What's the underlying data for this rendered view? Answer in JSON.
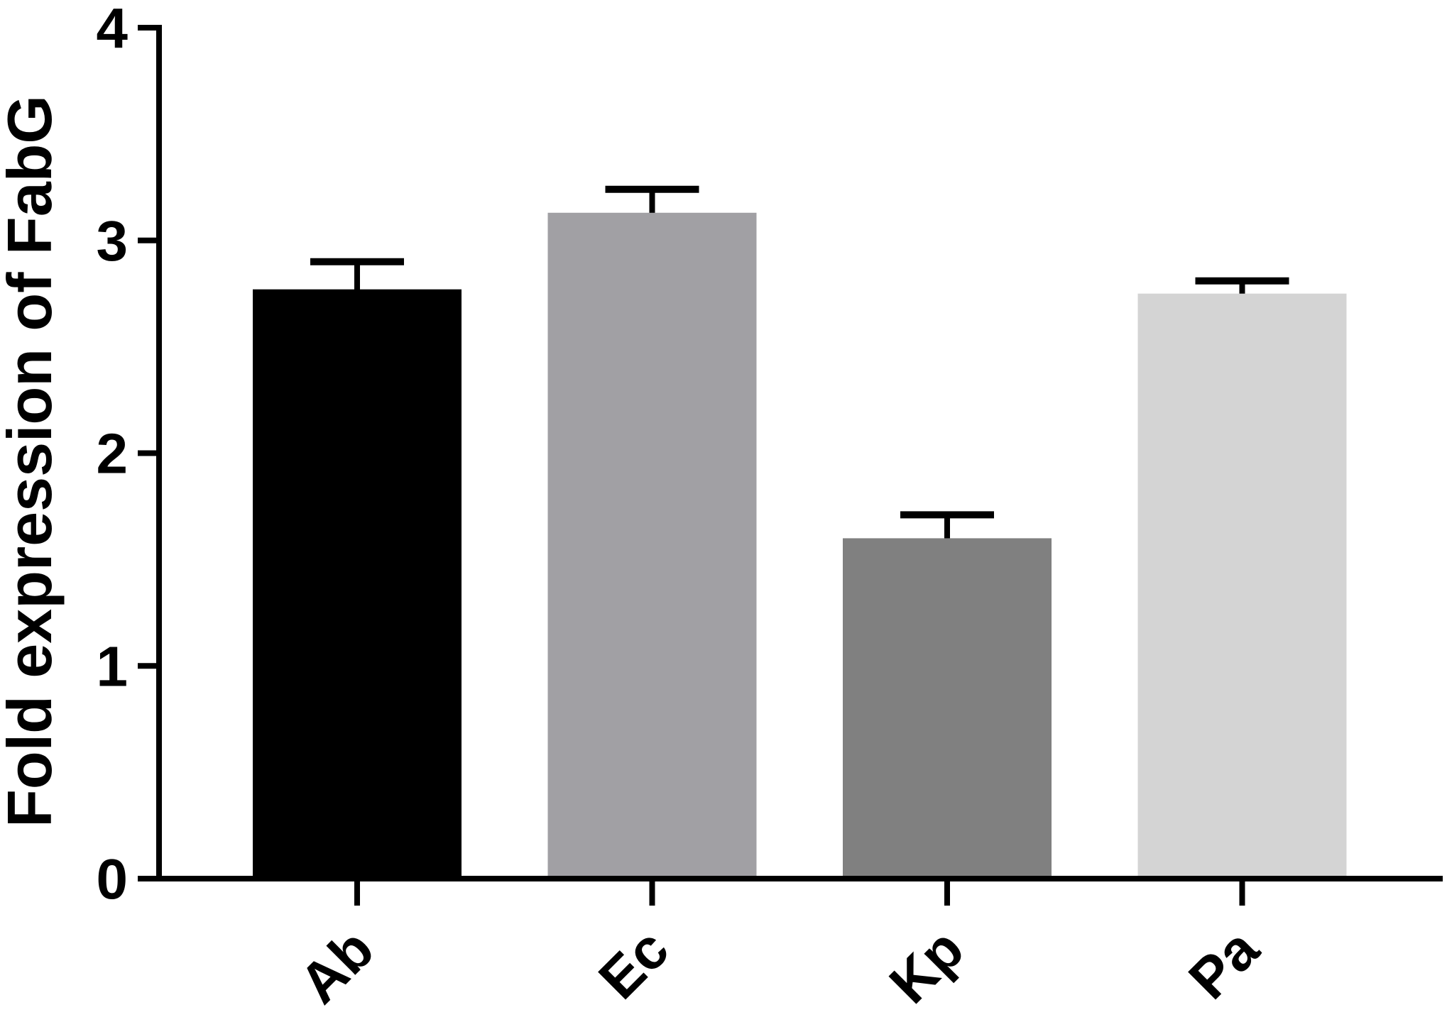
{
  "chart_data": {
    "type": "bar",
    "ylabel": "Fold expression of FabG",
    "categories": [
      "Ab",
      "Ec",
      "Kp",
      "Pa"
    ],
    "values": [
      2.77,
      3.13,
      1.6,
      2.75
    ],
    "errors": [
      0.13,
      0.11,
      0.11,
      0.06
    ],
    "colors": [
      "#000000",
      "#a1a0a4",
      "#808080",
      "#d4d4d4"
    ],
    "ylim": [
      0,
      4
    ],
    "yticks": [
      0,
      1,
      2,
      3,
      4
    ],
    "grid": false
  }
}
